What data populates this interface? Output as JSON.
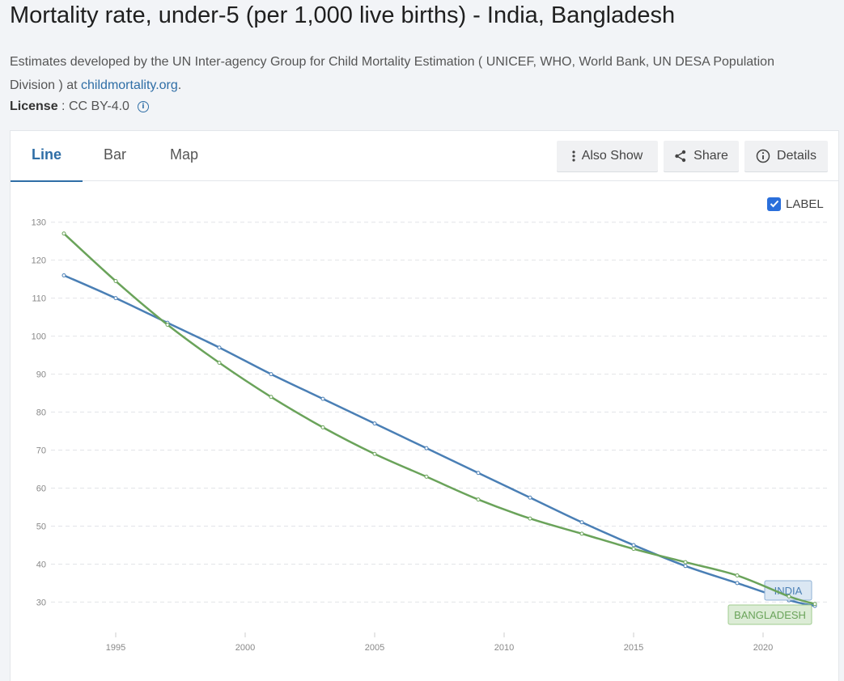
{
  "header": {
    "title": "Mortality rate, under-5 (per 1,000 live births) - India, Bangladesh",
    "source_prefix": "Estimates developed by the UN Inter-agency Group for Child Mortality Estimation ( UNICEF, WHO, World Bank, UN DESA Population Division ) at ",
    "source_link": "childmortality.org",
    "source_suffix": ".",
    "license_label": "License",
    "license_sep": " : ",
    "license_value": "CC BY-4.0"
  },
  "tabs": [
    {
      "label": "Line",
      "active": true
    },
    {
      "label": "Bar",
      "active": false
    },
    {
      "label": "Map",
      "active": false
    }
  ],
  "toolbar": {
    "also_show_label": "Also Show",
    "share_label": "Share",
    "details_label": "Details"
  },
  "label_toggle": {
    "label": "LABEL",
    "checked": true
  },
  "chart_data": {
    "type": "line",
    "title": "",
    "xlabel": "",
    "ylabel": "",
    "xlim": [
      1992.5,
      2022.5
    ],
    "ylim": [
      22,
      131
    ],
    "x_ticks": [
      "1995",
      "2000",
      "2005",
      "2010",
      "2015",
      "2020"
    ],
    "y_ticks": [
      "30",
      "40",
      "50",
      "60",
      "70",
      "80",
      "90",
      "100",
      "110",
      "120",
      "130"
    ],
    "grid": true,
    "series": [
      {
        "name": "INDIA",
        "color": "#4a7fb5",
        "x": [
          1993,
          1995,
          1997,
          1999,
          2001,
          2003,
          2005,
          2007,
          2009,
          2011,
          2013,
          2015,
          2017,
          2019,
          2021,
          2022
        ],
        "values": [
          116,
          110,
          103.5,
          97,
          90,
          83.5,
          77,
          70.5,
          64,
          57.5,
          51,
          45,
          39.5,
          35,
          30.5,
          29
        ]
      },
      {
        "name": "BANGLADESH",
        "color": "#6aa35a",
        "x": [
          1993,
          1995,
          1997,
          1999,
          2001,
          2003,
          2005,
          2007,
          2009,
          2011,
          2013,
          2015,
          2017,
          2019,
          2021,
          2022
        ],
        "values": [
          127,
          114.5,
          103,
          93,
          84,
          76,
          69,
          63,
          57,
          52,
          48,
          44,
          40.5,
          37,
          31.5,
          29.5
        ]
      }
    ]
  }
}
